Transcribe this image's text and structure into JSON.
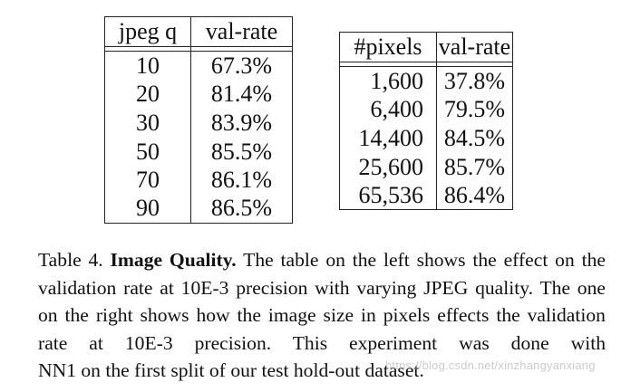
{
  "left_table": {
    "headers": [
      "jpeg q",
      "val-rate"
    ],
    "rows": [
      [
        "10",
        "67.3%"
      ],
      [
        "20",
        "81.4%"
      ],
      [
        "30",
        "83.9%"
      ],
      [
        "50",
        "85.5%"
      ],
      [
        "70",
        "86.1%"
      ],
      [
        "90",
        "86.5%"
      ]
    ]
  },
  "right_table": {
    "headers": [
      "#pixels",
      "val-rate"
    ],
    "rows": [
      [
        "1,600",
        "37.8%"
      ],
      [
        "6,400",
        "79.5%"
      ],
      [
        "14,400",
        "84.5%"
      ],
      [
        "25,600",
        "85.7%"
      ],
      [
        "65,536",
        "86.4%"
      ]
    ]
  },
  "caption": {
    "label": "Table 4.",
    "title": "Image Quality.",
    "line1": "The table on the left shows the effect on",
    "line2a": "the validation rate at 10",
    "line2e": "E",
    "line2b": "-3 precision with varying JPEG quality.",
    "line3": "The one on the right shows how the image size in pixels effects the",
    "line4a": "validation rate at 10",
    "line4e": "E",
    "line4b": "-3 precision. This experiment was done with",
    "line5": "NN1 on the first split of our test hold-out dataset."
  },
  "watermark": "https://blog.csdn.net/xinzhangyanxiang"
}
